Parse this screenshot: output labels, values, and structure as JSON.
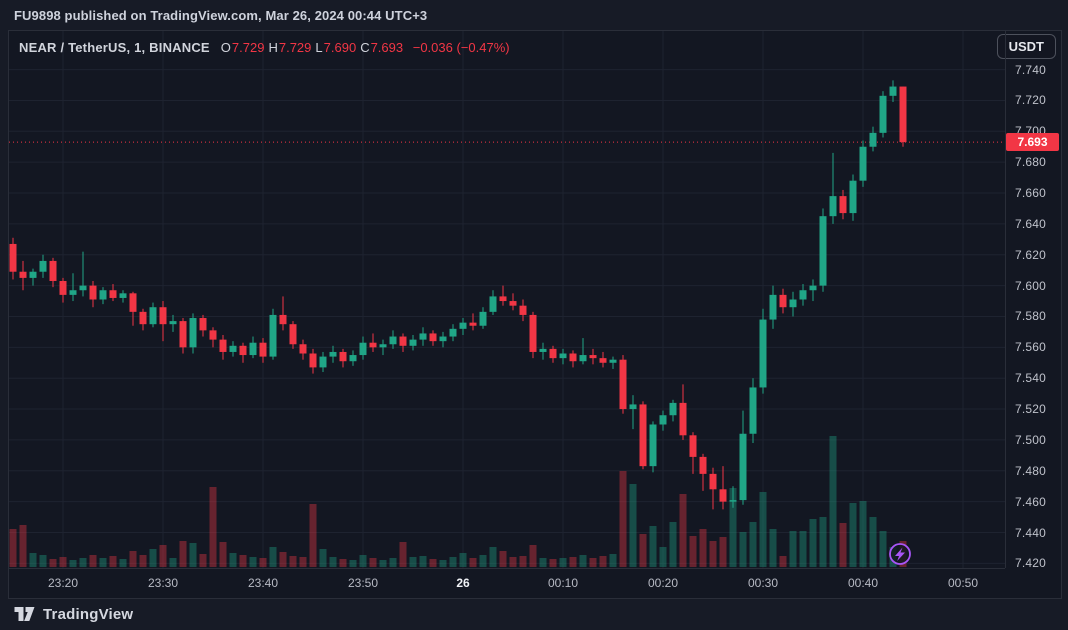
{
  "publish_bar": {
    "text": "FU9898 published on TradingView.com, Mar 26, 2024 00:44 UTC+3"
  },
  "legend": {
    "symbol": "NEAR / TetherUS, 1, BINANCE",
    "ohlc_items": [
      {
        "label": "O",
        "value": "7.729"
      },
      {
        "label": "H",
        "value": "7.729"
      },
      {
        "label": "L",
        "value": "7.690"
      },
      {
        "label": "C",
        "value": "7.693"
      }
    ],
    "change": "−0.036 (−0.47%)"
  },
  "currency_button": "USDT",
  "price_scale": {
    "labels": [
      "7.740",
      "7.720",
      "7.700",
      "7.680",
      "7.660",
      "7.640",
      "7.620",
      "7.600",
      "7.580",
      "7.560",
      "7.540",
      "7.520",
      "7.500",
      "7.480",
      "7.460",
      "7.440",
      "7.420"
    ],
    "last_price": "7.693"
  },
  "time_scale": {
    "ticks": [
      {
        "label": "23:20",
        "i": 5
      },
      {
        "label": "23:30",
        "i": 15
      },
      {
        "label": "23:40",
        "i": 25
      },
      {
        "label": "23:50",
        "i": 35
      },
      {
        "label": "26",
        "i": 45,
        "emphasis": true
      },
      {
        "label": "00:10",
        "i": 55
      },
      {
        "label": "00:20",
        "i": 65
      },
      {
        "label": "00:30",
        "i": 75
      },
      {
        "label": "00:40",
        "i": 85
      },
      {
        "label": "00:50",
        "i": 95
      }
    ]
  },
  "footer": {
    "logo_text": "TradingView"
  },
  "colors": {
    "background_outer": "#171b26",
    "background_pane": "#131722",
    "border": "#2a2e39",
    "grid": "#1e2330",
    "text_primary": "#d1d4dc",
    "text_secondary": "#b7bac4",
    "up": "#20a687",
    "down": "#f23645",
    "volume_up": "rgba(32,166,135,0.38)",
    "volume_down": "rgba(242,54,69,0.38)",
    "price_line": "#f23645",
    "boost_purple": "#a855f7"
  },
  "chart_data": {
    "type": "candlestick+volume",
    "symbol": "NEAR/TetherUS",
    "exchange": "BINANCE",
    "interval_minutes": 1,
    "title": "NEAR / TetherUS, 1, BINANCE",
    "ylabel": "price (USDT)",
    "ylim": [
      7.417,
      7.765
    ],
    "grid": true,
    "last_price": 7.693,
    "last_candle": {
      "open": 7.729,
      "high": 7.729,
      "low": 7.69,
      "close": 7.693,
      "change": -0.036,
      "change_pct": -0.47
    },
    "volume_unit": "relative (unlabeled axis, max ≈ 131)",
    "columns": [
      "time",
      "open",
      "high",
      "low",
      "close",
      "volume_rel"
    ],
    "candles": [
      [
        "23:15",
        7.627,
        7.631,
        7.604,
        7.609,
        38
      ],
      [
        "23:16",
        7.609,
        7.616,
        7.597,
        7.605,
        42
      ],
      [
        "23:17",
        7.605,
        7.611,
        7.6,
        7.609,
        14
      ],
      [
        "23:18",
        7.609,
        7.62,
        7.605,
        7.616,
        12
      ],
      [
        "23:19",
        7.616,
        7.618,
        7.599,
        7.603,
        8
      ],
      [
        "23:20",
        7.603,
        7.605,
        7.589,
        7.594,
        10
      ],
      [
        "23:21",
        7.594,
        7.608,
        7.59,
        7.597,
        7
      ],
      [
        "23:22",
        7.597,
        7.622,
        7.593,
        7.6,
        9
      ],
      [
        "23:23",
        7.6,
        7.603,
        7.586,
        7.591,
        12
      ],
      [
        "23:24",
        7.591,
        7.599,
        7.588,
        7.597,
        9
      ],
      [
        "23:25",
        7.597,
        7.601,
        7.59,
        7.592,
        11
      ],
      [
        "23:26",
        7.592,
        7.597,
        7.589,
        7.595,
        8
      ],
      [
        "23:27",
        7.595,
        7.596,
        7.574,
        7.583,
        16
      ],
      [
        "23:28",
        7.583,
        7.585,
        7.571,
        7.575,
        12
      ],
      [
        "23:29",
        7.575,
        7.589,
        7.573,
        7.586,
        18
      ],
      [
        "23:30",
        7.586,
        7.59,
        7.564,
        7.575,
        22
      ],
      [
        "23:31",
        7.575,
        7.581,
        7.57,
        7.577,
        9
      ],
      [
        "23:32",
        7.577,
        7.579,
        7.556,
        7.56,
        26
      ],
      [
        "23:33",
        7.56,
        7.582,
        7.556,
        7.579,
        24
      ],
      [
        "23:34",
        7.579,
        7.581,
        7.567,
        7.571,
        13
      ],
      [
        "23:35",
        7.571,
        7.573,
        7.56,
        7.565,
        80
      ],
      [
        "23:36",
        7.565,
        7.568,
        7.552,
        7.557,
        25
      ],
      [
        "23:37",
        7.557,
        7.564,
        7.554,
        7.561,
        14
      ],
      [
        "23:38",
        7.561,
        7.563,
        7.55,
        7.555,
        12
      ],
      [
        "23:39",
        7.555,
        7.567,
        7.553,
        7.563,
        10
      ],
      [
        "23:40",
        7.563,
        7.566,
        7.55,
        7.554,
        9
      ],
      [
        "23:41",
        7.554,
        7.585,
        7.552,
        7.581,
        20
      ],
      [
        "23:42",
        7.581,
        7.593,
        7.571,
        7.575,
        15
      ],
      [
        "23:43",
        7.575,
        7.577,
        7.559,
        7.562,
        11
      ],
      [
        "23:44",
        7.562,
        7.565,
        7.552,
        7.556,
        10
      ],
      [
        "23:45",
        7.556,
        7.559,
        7.543,
        7.547,
        63
      ],
      [
        "23:46",
        7.547,
        7.557,
        7.544,
        7.554,
        18
      ],
      [
        "23:47",
        7.554,
        7.561,
        7.55,
        7.557,
        10
      ],
      [
        "23:48",
        7.557,
        7.559,
        7.547,
        7.551,
        8
      ],
      [
        "23:49",
        7.551,
        7.558,
        7.548,
        7.555,
        7
      ],
      [
        "23:50",
        7.555,
        7.567,
        7.552,
        7.563,
        12
      ],
      [
        "23:51",
        7.563,
        7.569,
        7.557,
        7.56,
        9
      ],
      [
        "23:52",
        7.56,
        7.565,
        7.555,
        7.562,
        7
      ],
      [
        "23:53",
        7.562,
        7.571,
        7.559,
        7.567,
        9
      ],
      [
        "23:54",
        7.567,
        7.569,
        7.557,
        7.561,
        25
      ],
      [
        "23:55",
        7.561,
        7.568,
        7.558,
        7.565,
        10
      ],
      [
        "23:56",
        7.565,
        7.573,
        7.561,
        7.569,
        11
      ],
      [
        "23:57",
        7.569,
        7.571,
        7.561,
        7.564,
        8
      ],
      [
        "23:58",
        7.564,
        7.57,
        7.56,
        7.567,
        7
      ],
      [
        "23:59",
        7.567,
        7.575,
        7.564,
        7.572,
        10
      ],
      [
        "00:00",
        7.572,
        7.579,
        7.568,
        7.576,
        14
      ],
      [
        "00:01",
        7.576,
        7.582,
        7.571,
        7.574,
        9
      ],
      [
        "00:02",
        7.574,
        7.586,
        7.572,
        7.583,
        12
      ],
      [
        "00:03",
        7.583,
        7.597,
        7.581,
        7.593,
        20
      ],
      [
        "00:04",
        7.593,
        7.6,
        7.587,
        7.59,
        16
      ],
      [
        "00:05",
        7.59,
        7.595,
        7.584,
        7.587,
        10
      ],
      [
        "00:06",
        7.587,
        7.591,
        7.577,
        7.581,
        11
      ],
      [
        "00:07",
        7.581,
        7.583,
        7.553,
        7.557,
        22
      ],
      [
        "00:08",
        7.557,
        7.563,
        7.552,
        7.559,
        9
      ],
      [
        "00:09",
        7.559,
        7.561,
        7.55,
        7.553,
        8
      ],
      [
        "00:10",
        7.553,
        7.559,
        7.549,
        7.556,
        9
      ],
      [
        "00:11",
        7.556,
        7.558,
        7.547,
        7.551,
        10
      ],
      [
        "00:12",
        7.551,
        7.566,
        7.549,
        7.555,
        12
      ],
      [
        "00:13",
        7.555,
        7.559,
        7.549,
        7.553,
        9
      ],
      [
        "00:14",
        7.553,
        7.557,
        7.547,
        7.55,
        11
      ],
      [
        "00:15",
        7.55,
        7.554,
        7.546,
        7.552,
        13
      ],
      [
        "00:16",
        7.552,
        7.555,
        7.517,
        7.52,
        96
      ],
      [
        "00:17",
        7.52,
        7.529,
        7.507,
        7.523,
        83
      ],
      [
        "00:18",
        7.523,
        7.525,
        7.481,
        7.483,
        33
      ],
      [
        "00:19",
        7.483,
        7.512,
        7.479,
        7.51,
        41
      ],
      [
        "00:20",
        7.51,
        7.519,
        7.506,
        7.516,
        20
      ],
      [
        "00:21",
        7.516,
        7.526,
        7.512,
        7.524,
        45
      ],
      [
        "00:22",
        7.524,
        7.536,
        7.5,
        7.503,
        73
      ],
      [
        "00:23",
        7.503,
        7.505,
        7.478,
        7.489,
        31
      ],
      [
        "00:24",
        7.489,
        7.491,
        7.467,
        7.478,
        38
      ],
      [
        "00:25",
        7.478,
        7.482,
        7.455,
        7.468,
        26
      ],
      [
        "00:26",
        7.468,
        7.483,
        7.455,
        7.46,
        30
      ],
      [
        "00:27",
        7.46,
        7.47,
        7.456,
        7.461,
        79
      ],
      [
        "00:28",
        7.461,
        7.519,
        7.458,
        7.504,
        35
      ],
      [
        "00:29",
        7.504,
        7.54,
        7.498,
        7.534,
        45
      ],
      [
        "00:30",
        7.534,
        7.585,
        7.53,
        7.578,
        75
      ],
      [
        "00:31",
        7.578,
        7.6,
        7.572,
        7.594,
        38
      ],
      [
        "00:32",
        7.594,
        7.598,
        7.582,
        7.586,
        11
      ],
      [
        "00:33",
        7.586,
        7.596,
        7.58,
        7.591,
        36
      ],
      [
        "00:34",
        7.591,
        7.601,
        7.587,
        7.597,
        36
      ],
      [
        "00:35",
        7.597,
        7.604,
        7.59,
        7.6,
        48
      ],
      [
        "00:36",
        7.6,
        7.65,
        7.596,
        7.645,
        50
      ],
      [
        "00:37",
        7.645,
        7.686,
        7.64,
        7.658,
        131
      ],
      [
        "00:38",
        7.658,
        7.662,
        7.643,
        7.647,
        44
      ],
      [
        "00:39",
        7.647,
        7.672,
        7.642,
        7.668,
        64
      ],
      [
        "00:40",
        7.668,
        7.694,
        7.664,
        7.69,
        66
      ],
      [
        "00:41",
        7.69,
        7.703,
        7.687,
        7.699,
        50
      ],
      [
        "00:42",
        7.699,
        7.726,
        7.696,
        7.723,
        36
      ],
      [
        "00:43",
        7.723,
        7.733,
        7.719,
        7.729,
        20
      ],
      [
        "00:44",
        7.729,
        7.729,
        7.69,
        7.693,
        26
      ]
    ]
  }
}
